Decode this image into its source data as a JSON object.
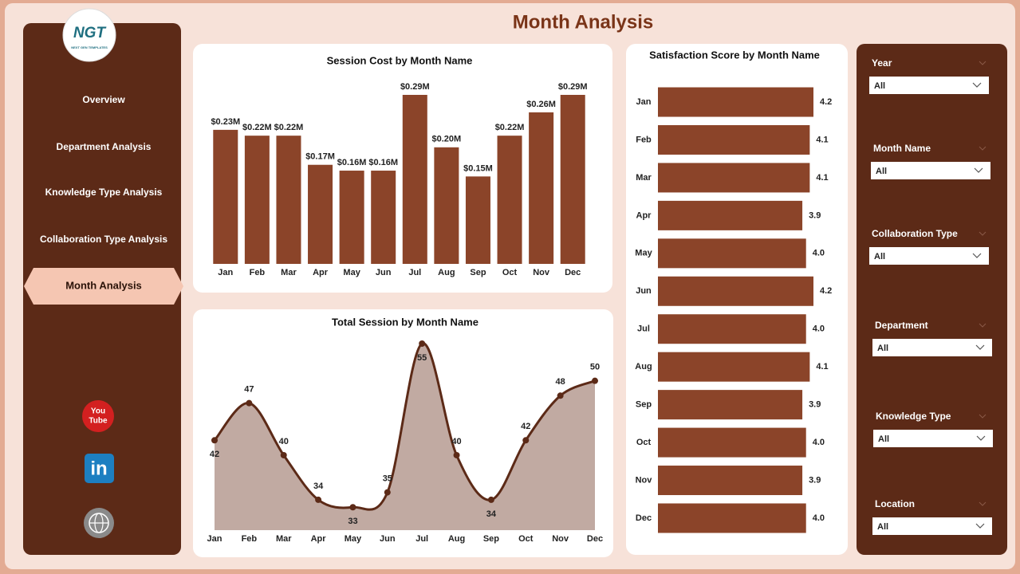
{
  "header": {
    "title": "Month Analysis"
  },
  "logo": {
    "text": "NGT",
    "subtext": "NEXT GEN TEMPLATES"
  },
  "nav": [
    {
      "label": "Overview",
      "active": false
    },
    {
      "label": "Department Analysis",
      "active": false
    },
    {
      "label": "Knowledge Type Analysis",
      "active": false
    },
    {
      "label": "Collaboration Type Analysis",
      "active": false
    },
    {
      "label": "Month Analysis",
      "active": true
    }
  ],
  "social_icons": {
    "youtube": [
      "You",
      "Tube"
    ],
    "linkedin": "in"
  },
  "filters": [
    {
      "label": "Year",
      "value": "All"
    },
    {
      "label": "Month Name",
      "value": "All"
    },
    {
      "label": "Collaboration Type",
      "value": "All"
    },
    {
      "label": "Department",
      "value": "All"
    },
    {
      "label": "Knowledge Type",
      "value": "All"
    },
    {
      "label": "Location",
      "value": "All"
    }
  ],
  "chart_data": [
    {
      "type": "bar",
      "orientation": "vertical",
      "title": "Session Cost by Month Name",
      "categories": [
        "Jan",
        "Feb",
        "Mar",
        "Apr",
        "May",
        "Jun",
        "Jul",
        "Aug",
        "Sep",
        "Oct",
        "Nov",
        "Dec"
      ],
      "values": [
        0.23,
        0.22,
        0.22,
        0.17,
        0.16,
        0.16,
        0.29,
        0.2,
        0.15,
        0.22,
        0.26,
        0.29
      ],
      "value_labels": [
        "$0.23M",
        "$0.22M",
        "$0.22M",
        "$0.17M",
        "$0.16M",
        "$0.16M",
        "$0.29M",
        "$0.20M",
        "$0.15M",
        "$0.22M",
        "$0.26M",
        "$0.29M"
      ],
      "color": "#8b4429"
    },
    {
      "type": "area",
      "title": "Total Session by Month Name",
      "categories": [
        "Jan",
        "Feb",
        "Mar",
        "Apr",
        "May",
        "Jun",
        "Jul",
        "Aug",
        "Sep",
        "Oct",
        "Nov",
        "Dec"
      ],
      "values": [
        42,
        47,
        40,
        34,
        33,
        35,
        55,
        40,
        34,
        42,
        48,
        50
      ],
      "color": "#5c2a17",
      "fill": "#c1aaa2"
    },
    {
      "type": "bar",
      "orientation": "horizontal",
      "title": "Satisfaction Score by Month Name",
      "categories": [
        "Jan",
        "Feb",
        "Mar",
        "Apr",
        "May",
        "Jun",
        "Jul",
        "Aug",
        "Sep",
        "Oct",
        "Nov",
        "Dec"
      ],
      "values": [
        4.2,
        4.1,
        4.1,
        3.9,
        4.0,
        4.2,
        4.0,
        4.1,
        3.9,
        4.0,
        3.9,
        4.0
      ],
      "value_labels": [
        "4.2",
        "4.1",
        "4.1",
        "3.9",
        "4.0",
        "4.2",
        "4.0",
        "4.1",
        "3.9",
        "4.0",
        "3.9",
        "4.0"
      ],
      "color": "#8b4429"
    }
  ]
}
